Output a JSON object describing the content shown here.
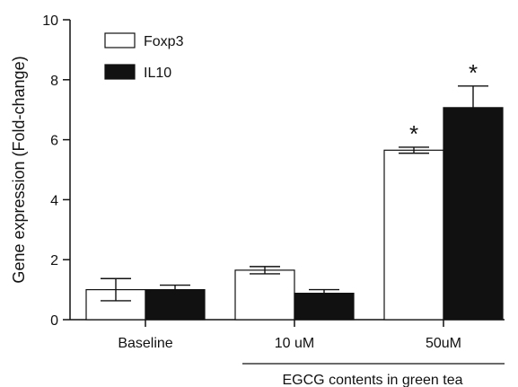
{
  "chart_data": {
    "type": "bar",
    "ylabel": "Gene expression (Fold-change)",
    "xlabel": "",
    "ylim": [
      0,
      10
    ],
    "yticks": [
      0,
      2,
      4,
      6,
      8,
      10
    ],
    "categories": [
      "Baseline",
      "10 uM",
      "50uM"
    ],
    "group_label": "EGCG contents in green tea",
    "legend_position": "top-left",
    "grid": false,
    "series": [
      {
        "name": "Foxp3",
        "color": "#ffffff",
        "values": [
          1.0,
          1.65,
          5.65
        ],
        "errors": [
          0.37,
          0.12,
          0.1
        ],
        "significance": [
          "",
          "",
          "*"
        ]
      },
      {
        "name": "IL10",
        "color": "#111111",
        "values": [
          1.0,
          0.88,
          7.07
        ],
        "errors": [
          0.15,
          0.12,
          0.72
        ],
        "significance": [
          "",
          "",
          "*"
        ]
      }
    ]
  }
}
